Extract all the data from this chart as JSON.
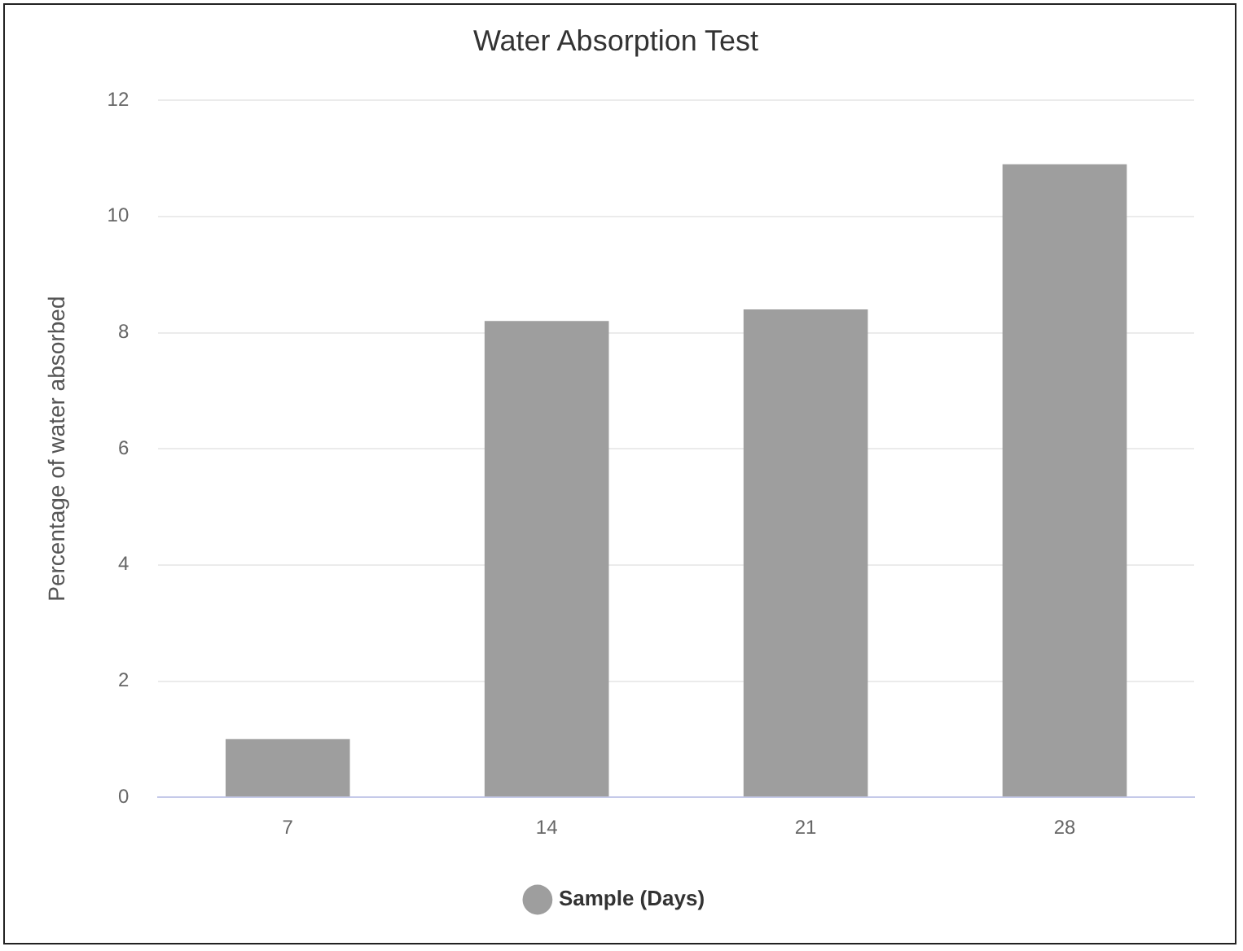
{
  "chart_data": {
    "type": "bar",
    "title": "Water Absorption Test",
    "ylabel": "Percentage of water absorbed",
    "categories": [
      "7",
      "14",
      "21",
      "28"
    ],
    "series": [
      {
        "name": "Sample (Days)",
        "color": "#9e9e9e",
        "values": [
          1.0,
          8.2,
          8.4,
          10.9
        ]
      }
    ],
    "ylim": [
      0,
      12
    ],
    "yticks": [
      0,
      2,
      4,
      6,
      8,
      10,
      12
    ],
    "grid": "y",
    "legend": "bottom"
  }
}
